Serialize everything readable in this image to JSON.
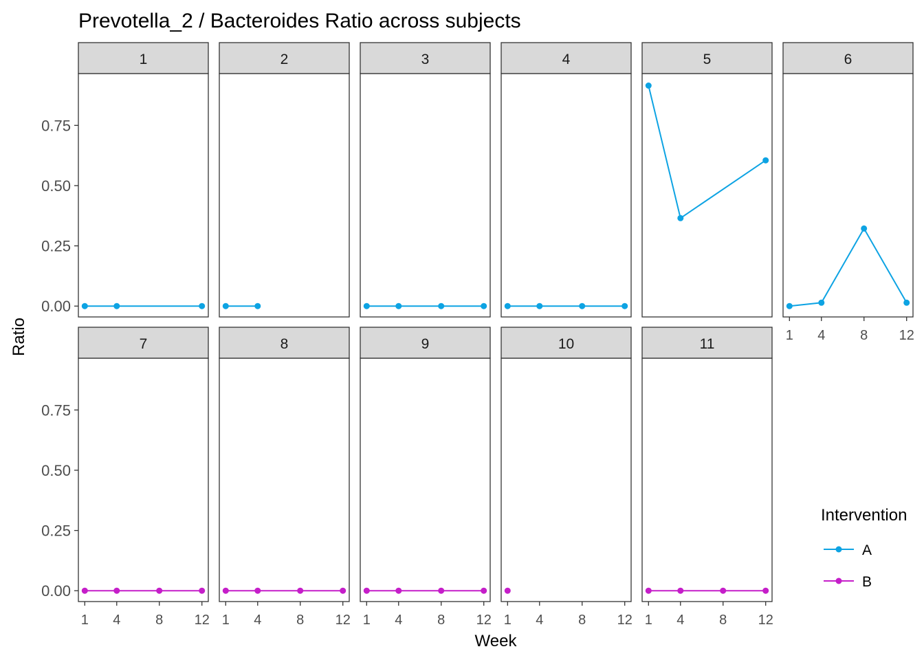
{
  "chart_data": {
    "type": "line",
    "facet": "subject",
    "title": "Prevotella_2 / Bacteroides Ratio across subjects",
    "xlabel": "Week",
    "ylabel": "Ratio",
    "x_ticks": [
      1,
      4,
      8,
      12
    ],
    "y_ticks": [
      0.0,
      0.25,
      0.5,
      0.75
    ],
    "y_tick_labels": [
      "0.00",
      "0.25",
      "0.50",
      "0.75"
    ],
    "ylim": [
      -0.045,
      0.965
    ],
    "grid": false,
    "legend": {
      "title": "Intervention",
      "position": "right",
      "items": [
        {
          "label": "A",
          "color": "#0da3e3"
        },
        {
          "label": "B",
          "color": "#c51ec9"
        }
      ]
    },
    "panels": [
      {
        "label": "1",
        "series": "A",
        "points": [
          [
            1,
            0.0
          ],
          [
            4,
            0.0
          ],
          [
            12,
            0.0
          ]
        ]
      },
      {
        "label": "2",
        "series": "A",
        "points": [
          [
            1,
            0.0
          ],
          [
            4,
            0.0
          ]
        ]
      },
      {
        "label": "3",
        "series": "A",
        "points": [
          [
            1,
            0.0
          ],
          [
            4,
            0.0
          ],
          [
            8,
            0.0
          ],
          [
            12,
            0.0
          ]
        ]
      },
      {
        "label": "4",
        "series": "A",
        "points": [
          [
            1,
            0.0
          ],
          [
            4,
            0.0
          ],
          [
            8,
            0.0
          ],
          [
            12,
            0.0
          ]
        ]
      },
      {
        "label": "5",
        "series": "A",
        "points": [
          [
            1,
            0.915
          ],
          [
            4,
            0.365
          ],
          [
            12,
            0.605
          ]
        ]
      },
      {
        "label": "6",
        "series": "A",
        "points": [
          [
            1,
            0.0
          ],
          [
            4,
            0.014
          ],
          [
            8,
            0.322
          ],
          [
            12,
            0.014
          ]
        ]
      },
      {
        "label": "7",
        "series": "B",
        "points": [
          [
            1,
            0.0
          ],
          [
            4,
            0.0
          ],
          [
            8,
            0.0
          ],
          [
            12,
            0.0
          ]
        ]
      },
      {
        "label": "8",
        "series": "B",
        "points": [
          [
            1,
            0.0
          ],
          [
            4,
            0.0
          ],
          [
            8,
            0.0
          ],
          [
            12,
            0.0
          ]
        ]
      },
      {
        "label": "9",
        "series": "B",
        "points": [
          [
            1,
            0.0
          ],
          [
            4,
            0.0
          ],
          [
            8,
            0.0
          ],
          [
            12,
            0.0
          ]
        ]
      },
      {
        "label": "10",
        "series": "B",
        "points": [
          [
            1,
            0.0
          ]
        ]
      },
      {
        "label": "11",
        "series": "B",
        "points": [
          [
            1,
            0.0
          ],
          [
            4,
            0.0
          ],
          [
            8,
            0.0
          ],
          [
            12,
            0.0
          ]
        ]
      }
    ]
  }
}
